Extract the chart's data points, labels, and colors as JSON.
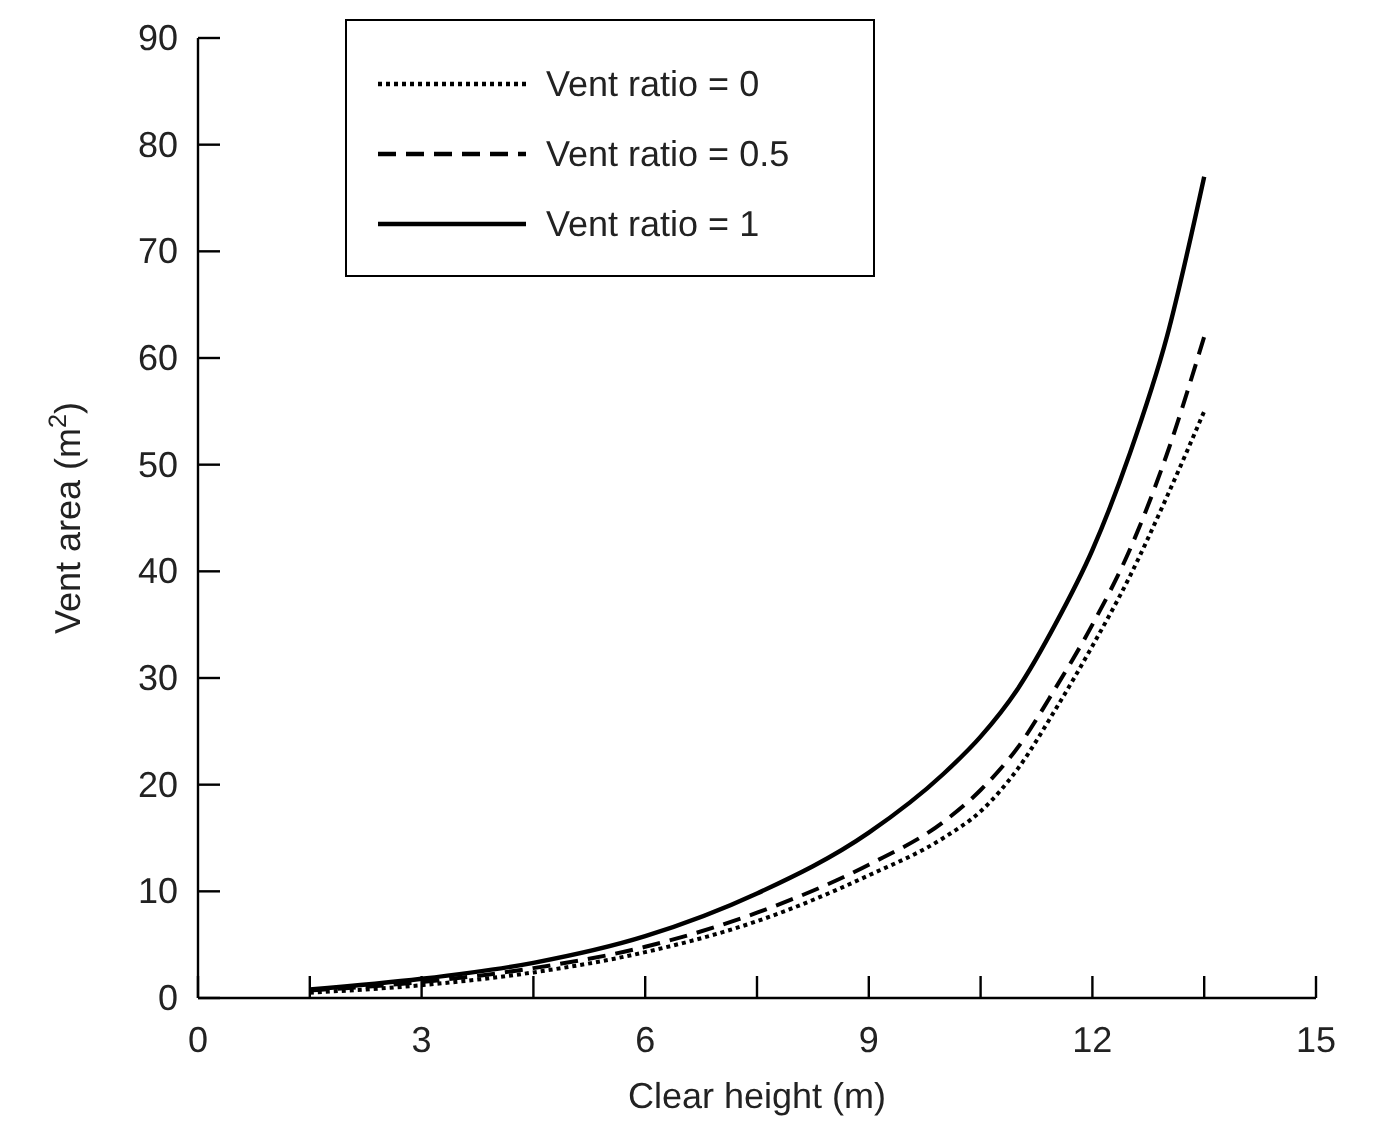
{
  "chart_data": {
    "type": "line",
    "xlabel": "Clear height (m)",
    "ylabel": "Vent area (m$^{2}$)",
    "xlim": [
      0,
      15
    ],
    "ylim": [
      0,
      90
    ],
    "xticks": [
      0,
      {
        "value": 1.5,
        "label": null
      },
      3,
      {
        "value": 4.5,
        "label": null
      },
      6,
      {
        "value": 7.5,
        "label": null
      },
      9,
      {
        "value": 10.5,
        "label": null
      },
      12,
      {
        "value": 13.5,
        "label": null
      },
      15
    ],
    "yticks": [
      0,
      10,
      20,
      30,
      40,
      50,
      60,
      70,
      80,
      90
    ],
    "grid": false,
    "legend": "top left",
    "marker": "none",
    "x": [
      1.5,
      3,
      4.5,
      6,
      7.5,
      9,
      10,
      10.5,
      11,
      11.5,
      12,
      12.5,
      13,
      13.5
    ],
    "series": [
      {
        "name": "Vent ratio = 0",
        "color": "#000000",
        "line_style": "dotted",
        "values": [
          0.5,
          1.2,
          2.4,
          4.3,
          7.2,
          11.5,
          15,
          17.5,
          21.5,
          27,
          33,
          39.5,
          47,
          55
        ]
      },
      {
        "name": "Vent ratio = 0.5",
        "color": "#000000",
        "line_style": "dashed",
        "values": [
          0.7,
          1.5,
          2.8,
          4.8,
          8,
          12.5,
          16.5,
          19.5,
          23.5,
          29,
          35,
          42,
          51,
          62
        ]
      },
      {
        "name": "Vent ratio = 1",
        "color": "#000000",
        "line_style": "solid",
        "values": [
          0.8,
          1.8,
          3.3,
          5.8,
          9.8,
          15.5,
          21,
          24.5,
          29,
          35,
          42,
          51,
          62,
          77
        ]
      }
    ]
  }
}
